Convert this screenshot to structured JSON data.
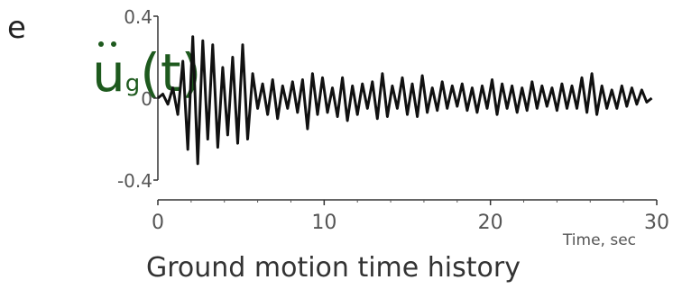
{
  "fragment_text": "e",
  "symbol": {
    "main": "u",
    "subscript": "g",
    "argument": "(t)"
  },
  "caption": "Ground motion time history",
  "chart_data": {
    "type": "line",
    "x_unit_label": "Time, sec",
    "xlim": [
      0,
      30
    ],
    "ylim": [
      -0.4,
      0.4
    ],
    "x_ticks": [
      "0",
      "10",
      "20",
      "30"
    ],
    "y_ticks": [
      "0.4",
      "0",
      "-0.4"
    ],
    "series": [
      {
        "color": "#111111",
        "x": [
          0,
          0.3,
          0.6,
          0.9,
          1.2,
          1.5,
          1.8,
          2.1,
          2.4,
          2.7,
          3.0,
          3.3,
          3.6,
          3.9,
          4.2,
          4.5,
          4.8,
          5.1,
          5.4,
          5.7,
          6.0,
          6.3,
          6.6,
          6.9,
          7.2,
          7.5,
          7.8,
          8.1,
          8.4,
          8.7,
          9.0,
          9.3,
          9.6,
          9.9,
          10.2,
          10.5,
          10.8,
          11.1,
          11.4,
          11.7,
          12.0,
          12.3,
          12.6,
          12.9,
          13.2,
          13.5,
          13.8,
          14.1,
          14.4,
          14.7,
          15.0,
          15.3,
          15.6,
          15.9,
          16.2,
          16.5,
          16.8,
          17.1,
          17.4,
          17.7,
          18.0,
          18.3,
          18.6,
          18.9,
          19.2,
          19.5,
          19.8,
          20.1,
          20.4,
          20.7,
          21.0,
          21.3,
          21.6,
          21.9,
          22.2,
          22.5,
          22.8,
          23.1,
          23.4,
          23.7,
          24.0,
          24.3,
          24.6,
          24.9,
          25.2,
          25.5,
          25.8,
          26.1,
          26.4,
          26.7,
          27.0,
          27.3,
          27.6,
          27.9,
          28.2,
          28.5,
          28.8,
          29.1,
          29.4,
          29.7
        ],
        "y": [
          0.0,
          0.02,
          -0.03,
          0.05,
          -0.08,
          0.18,
          -0.25,
          0.3,
          -0.32,
          0.28,
          -0.2,
          0.26,
          -0.24,
          0.15,
          -0.18,
          0.2,
          -0.22,
          0.26,
          -0.2,
          0.12,
          -0.05,
          0.07,
          -0.08,
          0.09,
          -0.1,
          0.06,
          -0.05,
          0.08,
          -0.07,
          0.09,
          -0.15,
          0.12,
          -0.08,
          0.1,
          -0.07,
          0.05,
          -0.09,
          0.1,
          -0.11,
          0.06,
          -0.08,
          0.07,
          -0.05,
          0.08,
          -0.1,
          0.12,
          -0.09,
          0.06,
          -0.05,
          0.1,
          -0.08,
          0.07,
          -0.09,
          0.11,
          -0.07,
          0.05,
          -0.06,
          0.08,
          -0.05,
          0.06,
          -0.04,
          0.07,
          -0.06,
          0.05,
          -0.07,
          0.06,
          -0.05,
          0.09,
          -0.08,
          0.07,
          -0.05,
          0.06,
          -0.07,
          0.05,
          -0.06,
          0.08,
          -0.05,
          0.06,
          -0.04,
          0.05,
          -0.06,
          0.07,
          -0.05,
          0.06,
          -0.05,
          0.1,
          -0.07,
          0.12,
          -0.08,
          0.06,
          -0.05,
          0.04,
          -0.05,
          0.06,
          -0.04,
          0.05,
          -0.03,
          0.04,
          -0.02,
          0.0
        ]
      }
    ]
  }
}
